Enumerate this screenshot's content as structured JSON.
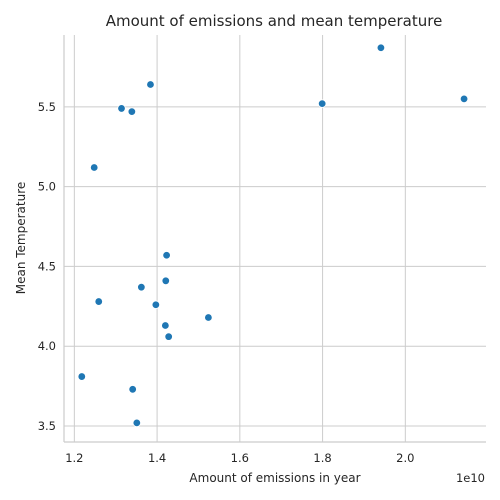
{
  "chart_data": {
    "type": "scatter",
    "title": "Amount of emissions and mean temperature",
    "xlabel": "Amount of emissions in year",
    "ylabel": "Mean Temperature",
    "x_offset_label": "1e10",
    "xlim": [
      1.175,
      2.195
    ],
    "ylim": [
      3.4,
      5.95
    ],
    "xticks": [
      1.2,
      1.4,
      1.6,
      1.8,
      2.0
    ],
    "xtick_labels": [
      "1.2",
      "1.4",
      "1.6",
      "1.8",
      "2.0"
    ],
    "yticks": [
      3.5,
      4.0,
      4.5,
      5.0,
      5.5
    ],
    "ytick_labels": [
      "3.5",
      "4.0",
      "4.5",
      "5.0",
      "5.5"
    ],
    "grid": true,
    "color": "#1f77b4",
    "points": [
      {
        "x": 1.218,
        "y": 3.81
      },
      {
        "x": 1.248,
        "y": 5.12
      },
      {
        "x": 1.259,
        "y": 4.28
      },
      {
        "x": 1.314,
        "y": 5.49
      },
      {
        "x": 1.339,
        "y": 5.47
      },
      {
        "x": 1.341,
        "y": 3.73
      },
      {
        "x": 1.351,
        "y": 3.52
      },
      {
        "x": 1.362,
        "y": 4.37
      },
      {
        "x": 1.384,
        "y": 5.64
      },
      {
        "x": 1.397,
        "y": 4.26
      },
      {
        "x": 1.42,
        "y": 4.13
      },
      {
        "x": 1.421,
        "y": 4.41
      },
      {
        "x": 1.423,
        "y": 4.57
      },
      {
        "x": 1.428,
        "y": 4.06
      },
      {
        "x": 1.524,
        "y": 4.18
      },
      {
        "x": 1.799,
        "y": 5.52
      },
      {
        "x": 1.941,
        "y": 5.87
      },
      {
        "x": 2.142,
        "y": 5.55
      }
    ]
  }
}
